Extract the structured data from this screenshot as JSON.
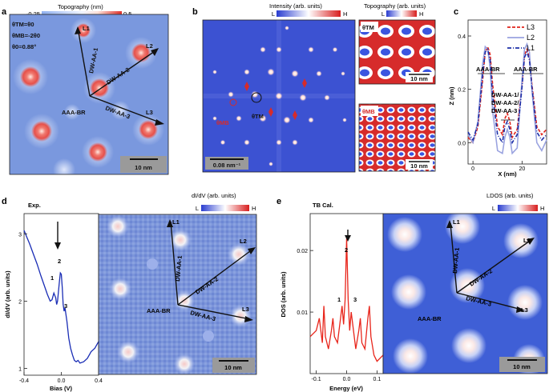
{
  "panels": {
    "a": {
      "label": "a",
      "colorbar_title": "Topography (nm)",
      "cb_min": "-0.25",
      "cb_max": "0.5",
      "params": [
        "θTM=θ0",
        "θMB=-2θ0",
        "θ0=0.88°"
      ],
      "lines": [
        "L1",
        "L2",
        "L3"
      ],
      "dirs": [
        "DW-AA-1",
        "DW-AA-2",
        "DW-AA-3"
      ],
      "center_label": "AAA-BR",
      "scale": "10 nm"
    },
    "b": {
      "label": "b",
      "colorbar_title": "Intensity (arb. units)",
      "cb_low": "L",
      "cb_high": "H",
      "theta_tm": "θTM",
      "theta_mb": "θMB",
      "scale": "0.08 nm⁻¹",
      "topo_title": "Topography (arb. units)",
      "topo_low": "L",
      "topo_high": "H",
      "inset_tm_label": "θTM",
      "inset_mb_label": "θMB",
      "inset_scale": "10 nm"
    },
    "c": {
      "label": "c",
      "legend": [
        "L3",
        "L2",
        "L1"
      ],
      "legend_colors": [
        "#e0241b",
        "#9aa3e0",
        "#1c2fa8"
      ],
      "peak_label_left": "AAA-BR",
      "peak_label_right": "AAA-BR",
      "dw_labels": [
        "DW-AA-1/",
        "DW-AA-2/",
        "DW-AA-3"
      ],
      "ylabel": "Z (nm)",
      "xlabel": "X (nm)",
      "yticks": [
        "0.4",
        "0.2",
        "0.0"
      ],
      "xticks": [
        "0",
        "20"
      ]
    },
    "d": {
      "label": "d",
      "colorbar_title": "dI/dV (arb. units)",
      "cb_low": "L",
      "cb_high": "H",
      "exp_label": "Exp.",
      "ylabel": "dI/dV (arb. units)",
      "xlabel": "Bias (V)",
      "yticks": [
        "3",
        "2",
        "1"
      ],
      "xticks": [
        "-0.4",
        "0.0",
        "0.4"
      ],
      "peaks": [
        "1",
        "2",
        "3"
      ],
      "lines": [
        "L1",
        "L2",
        "L3"
      ],
      "dirs": [
        "DW-AA-1",
        "DW-AA-2",
        "DW-AA-3"
      ],
      "center_label": "AAA-BR",
      "scale": "10 nm"
    },
    "e": {
      "label": "e",
      "colorbar_title": "LDOS (arb. units)",
      "cb_low": "L",
      "cb_high": "H",
      "tb_label": "TB Cal.",
      "ylabel": "DOS (arb. units)",
      "xlabel": "Energy (eV)",
      "yticks": [
        "0.02",
        "0.01"
      ],
      "xticks": [
        "-0.1",
        "0.0",
        "0.1"
      ],
      "peaks": [
        "1",
        "2",
        "3"
      ],
      "lines": [
        "L1",
        "L2",
        "L3"
      ],
      "dirs": [
        "DW-AA-1",
        "DW-AA-2",
        "DW-AA-3"
      ],
      "center_label": "AAA-BR",
      "scale": "10 nm"
    }
  },
  "colors": {
    "map_blue": "#6f8ed8",
    "spot_red": "#e6504a",
    "spec_d": "#1a2db5",
    "spec_e": "#e8251b"
  },
  "chart_data": [
    {
      "type": "line",
      "panel": "c",
      "xlabel": "X (nm)",
      "ylabel": "Z (nm)",
      "xlim": [
        -2,
        30
      ],
      "ylim": [
        -0.08,
        0.46
      ],
      "series": [
        {
          "name": "L3",
          "x": [
            -2,
            0,
            2,
            4,
            5,
            6,
            7,
            8,
            10,
            12,
            13,
            14,
            15,
            16,
            18,
            20,
            21,
            22,
            23,
            24,
            26,
            28,
            30
          ],
          "y": [
            0.02,
            0.0,
            0.06,
            0.24,
            0.34,
            0.36,
            0.33,
            0.22,
            0.06,
            0.03,
            0.09,
            0.11,
            0.08,
            0.02,
            0.05,
            0.22,
            0.33,
            0.35,
            0.32,
            0.22,
            0.06,
            0.03,
            0.05
          ]
        },
        {
          "name": "L2",
          "x": [
            -2,
            0,
            2,
            4,
            5,
            6,
            7,
            8,
            10,
            12,
            13,
            14,
            15,
            16,
            18,
            20,
            21,
            22,
            23,
            24,
            26,
            28,
            30
          ],
          "y": [
            0.03,
            0.0,
            0.08,
            0.3,
            0.36,
            0.35,
            0.28,
            0.12,
            -0.03,
            -0.04,
            0.02,
            0.05,
            0.02,
            -0.04,
            -0.02,
            0.24,
            0.35,
            0.37,
            0.34,
            0.2,
            0.0,
            -0.03,
            0.01
          ]
        },
        {
          "name": "L1",
          "x": [
            -2,
            0,
            2,
            4,
            5,
            6,
            7,
            8,
            10,
            12,
            13,
            14,
            15,
            16,
            18,
            20,
            21,
            22,
            23,
            24,
            26,
            28,
            30
          ],
          "y": [
            0.04,
            0.01,
            0.07,
            0.26,
            0.34,
            0.35,
            0.31,
            0.18,
            0.03,
            0.0,
            0.06,
            0.08,
            0.05,
            0.0,
            0.03,
            0.21,
            0.32,
            0.34,
            0.31,
            0.21,
            0.04,
            0.01,
            0.03
          ]
        }
      ]
    },
    {
      "type": "line",
      "panel": "d",
      "xlabel": "Bias (V)",
      "ylabel": "dI/dV (arb. units)",
      "xlim": [
        -0.4,
        0.4
      ],
      "ylim": [
        0.9,
        3.3
      ],
      "series": [
        {
          "x": [
            -0.4,
            -0.37,
            -0.34,
            -0.3,
            -0.26,
            -0.22,
            -0.18,
            -0.15,
            -0.12,
            -0.1,
            -0.08,
            -0.06,
            -0.05,
            -0.04,
            -0.03,
            -0.02,
            -0.01,
            0.0,
            0.01,
            0.02,
            0.03,
            0.04,
            0.06,
            0.08,
            0.1,
            0.12,
            0.14,
            0.16,
            0.18,
            0.2,
            0.24,
            0.28,
            0.32,
            0.36,
            0.4
          ],
          "y": [
            3.05,
            2.95,
            2.85,
            2.7,
            2.55,
            2.38,
            2.22,
            2.1,
            2.0,
            2.02,
            2.12,
            2.05,
            1.95,
            2.0,
            2.15,
            2.3,
            2.42,
            2.4,
            2.2,
            1.95,
            1.85,
            1.9,
            1.7,
            1.45,
            1.3,
            1.2,
            1.12,
            1.1,
            1.12,
            1.08,
            1.1,
            1.15,
            1.25,
            1.3,
            1.4
          ]
        }
      ]
    },
    {
      "type": "line",
      "panel": "e",
      "xlabel": "Energy (eV)",
      "ylabel": "DOS (arb. units)",
      "xlim": [
        -0.12,
        0.12
      ],
      "ylim": [
        0.0,
        0.026
      ],
      "series": [
        {
          "x": [
            -0.12,
            -0.1,
            -0.09,
            -0.08,
            -0.075,
            -0.07,
            -0.06,
            -0.05,
            -0.045,
            -0.04,
            -0.03,
            -0.02,
            -0.015,
            -0.01,
            -0.005,
            0.0,
            0.005,
            0.01,
            0.015,
            0.02,
            0.03,
            0.04,
            0.045,
            0.05,
            0.06,
            0.07,
            0.075,
            0.08,
            0.09,
            0.1,
            0.12
          ],
          "y": [
            0.006,
            0.007,
            0.009,
            0.005,
            0.011,
            0.006,
            0.004,
            0.007,
            0.009,
            0.006,
            0.005,
            0.009,
            0.011,
            0.008,
            0.012,
            0.022,
            0.012,
            0.007,
            0.01,
            0.008,
            0.004,
            0.007,
            0.009,
            0.005,
            0.004,
            0.009,
            0.011,
            0.006,
            0.003,
            0.002,
            0.003
          ]
        }
      ]
    }
  ]
}
